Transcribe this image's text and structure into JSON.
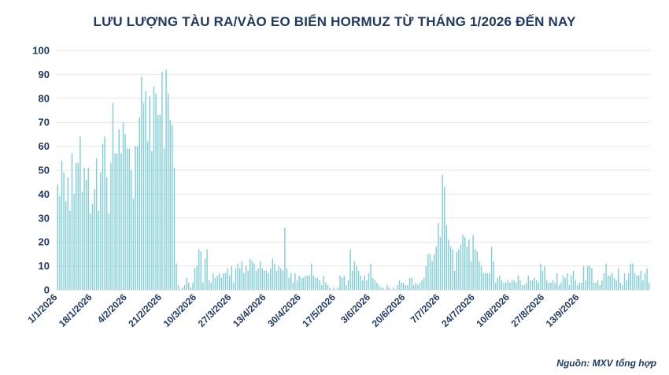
{
  "chart_data": {
    "type": "bar",
    "title": "LƯU LƯỢNG TÀU RA/VÀO EO BIỂN HORMUZ TỪ THÁNG 1/2026 ĐẾN NAY",
    "xlabel": "",
    "ylabel": "",
    "ylim": [
      0,
      100
    ],
    "yticks": [
      0,
      10,
      20,
      30,
      40,
      50,
      60,
      70,
      80,
      90,
      100
    ],
    "x_tick_labels": [
      "1/1/2026",
      "18/1/2026",
      "4/2/2026",
      "21/2/2026",
      "10/3/2026",
      "27/3/2026",
      "13/4/2026",
      "30/4/2026",
      "17/5/2026",
      "3/6/2026",
      "20/6/2026",
      "7/7/2026",
      "24/7/2026",
      "10/8/2026",
      "27/8/2026",
      "13/9/2026"
    ],
    "x_start": "1/1/2026",
    "x_end": "15/9/2026",
    "grid": "horizontal",
    "bar_color": "#7fcfd8",
    "gridline_color": "#e6e6e6",
    "values": [
      44,
      39,
      54,
      49,
      37,
      47,
      33,
      57,
      40,
      53,
      53,
      64,
      41,
      51,
      46,
      51,
      32,
      36,
      42,
      55,
      33,
      49,
      61,
      64,
      47,
      32,
      53,
      78,
      57,
      57,
      67,
      57,
      70,
      65,
      59,
      59,
      50,
      38,
      60,
      60,
      72,
      89,
      78,
      83,
      62,
      81,
      58,
      85,
      82,
      73,
      73,
      91,
      59,
      92,
      82,
      71,
      69,
      51,
      11,
      2,
      0,
      1,
      2,
      5,
      3,
      1,
      3,
      9,
      10,
      17,
      16,
      3,
      13,
      17,
      4,
      3,
      7,
      5,
      6,
      7,
      5,
      7,
      7,
      9,
      6,
      10,
      3,
      9,
      11,
      9,
      12,
      7,
      10,
      8,
      13,
      12,
      11,
      8,
      9,
      12,
      9,
      8,
      8,
      7,
      9,
      13,
      11,
      8,
      10,
      9,
      8,
      26,
      9,
      5,
      7,
      3,
      7,
      4,
      6,
      5,
      5,
      6,
      6,
      6,
      11,
      6,
      5,
      5,
      4,
      2,
      6,
      3,
      2,
      1,
      0,
      1,
      0,
      1,
      6,
      5,
      6,
      2,
      4,
      17,
      8,
      12,
      10,
      8,
      6,
      4,
      6,
      4,
      7,
      11,
      5,
      4,
      3,
      2,
      1,
      1,
      0,
      2,
      1,
      0,
      1,
      0,
      2,
      4,
      3,
      3,
      2,
      2,
      5,
      5,
      2,
      3,
      2,
      3,
      4,
      5,
      10,
      15,
      15,
      12,
      15,
      18,
      28,
      22,
      48,
      43,
      27,
      21,
      18,
      17,
      8,
      16,
      17,
      19,
      23,
      22,
      18,
      21,
      12,
      23,
      17,
      16,
      12,
      10,
      7,
      7,
      7,
      7,
      18,
      12,
      3,
      5,
      6,
      4,
      3,
      3,
      4,
      3,
      4,
      4,
      3,
      6,
      4,
      2,
      2,
      3,
      6,
      4,
      4,
      5,
      4,
      3,
      11,
      8,
      10,
      4,
      3,
      3,
      4,
      3,
      7,
      2,
      3,
      6,
      5,
      7,
      2,
      6,
      8,
      4,
      2,
      3,
      3,
      10,
      4,
      10,
      10,
      9,
      3,
      3,
      4,
      2,
      4,
      7,
      11,
      6,
      6,
      7,
      5,
      4,
      9,
      3,
      2,
      7,
      4,
      7,
      11,
      11,
      7,
      6,
      6,
      8,
      4,
      7,
      9,
      3
    ]
  },
  "source_note": "Nguồn: MXV tổng hợp"
}
